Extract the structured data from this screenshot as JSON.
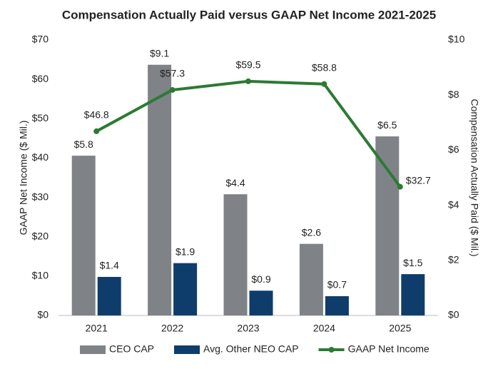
{
  "chart_data": {
    "type": "bar",
    "title": "Compensation Actually Paid versus GAAP Net Income 2021-2025",
    "y_label": "GAAP Net Income ($ Mil.)",
    "y2_label": "Compensation Actually Paid ($ Mil.)",
    "categories": [
      "2021",
      "2022",
      "2023",
      "2024",
      "2025"
    ],
    "series": [
      {
        "name": "CEO CAP",
        "type": "bar",
        "axis": "y2",
        "color": "#7f8387",
        "values": [
          5.8,
          9.1,
          4.4,
          2.6,
          6.5
        ],
        "value_labels": [
          "$5.8",
          "$9.1",
          "$4.4",
          "$2.6",
          "$6.5"
        ]
      },
      {
        "name": "Avg. Other NEO CAP",
        "type": "bar",
        "axis": "y2",
        "color": "#0e3d6b",
        "values": [
          1.4,
          1.9,
          0.9,
          0.7,
          1.5
        ],
        "value_labels": [
          "$1.4",
          "$1.9",
          "$0.9",
          "$0.7",
          "$1.5"
        ]
      },
      {
        "name": "GAAP Net Income",
        "type": "line",
        "axis": "y",
        "color": "#2c7a33",
        "values": [
          46.8,
          57.3,
          59.5,
          58.8,
          32.7
        ],
        "value_labels": [
          "$46.8",
          "$57.3",
          "$59.5",
          "$58.8",
          "$32.7"
        ]
      }
    ],
    "ylim": [
      0,
      70
    ],
    "yticks": [
      {
        "value": 0,
        "label": "$0"
      },
      {
        "value": 10,
        "label": "$10"
      },
      {
        "value": 20,
        "label": "$20"
      },
      {
        "value": 30,
        "label": "$30"
      },
      {
        "value": 40,
        "label": "$40"
      },
      {
        "value": 50,
        "label": "$50"
      },
      {
        "value": 60,
        "label": "$60"
      },
      {
        "value": 70,
        "label": "$70"
      }
    ],
    "y2lim": [
      0,
      10
    ],
    "y2ticks": [
      {
        "value": 0,
        "label": "$0"
      },
      {
        "value": 2,
        "label": "$2"
      },
      {
        "value": 4,
        "label": "$4"
      },
      {
        "value": 6,
        "label": "$6"
      },
      {
        "value": 8,
        "label": "$8"
      },
      {
        "value": 10,
        "label": "$10"
      }
    ],
    "grid": false,
    "legend": "bottom"
  }
}
